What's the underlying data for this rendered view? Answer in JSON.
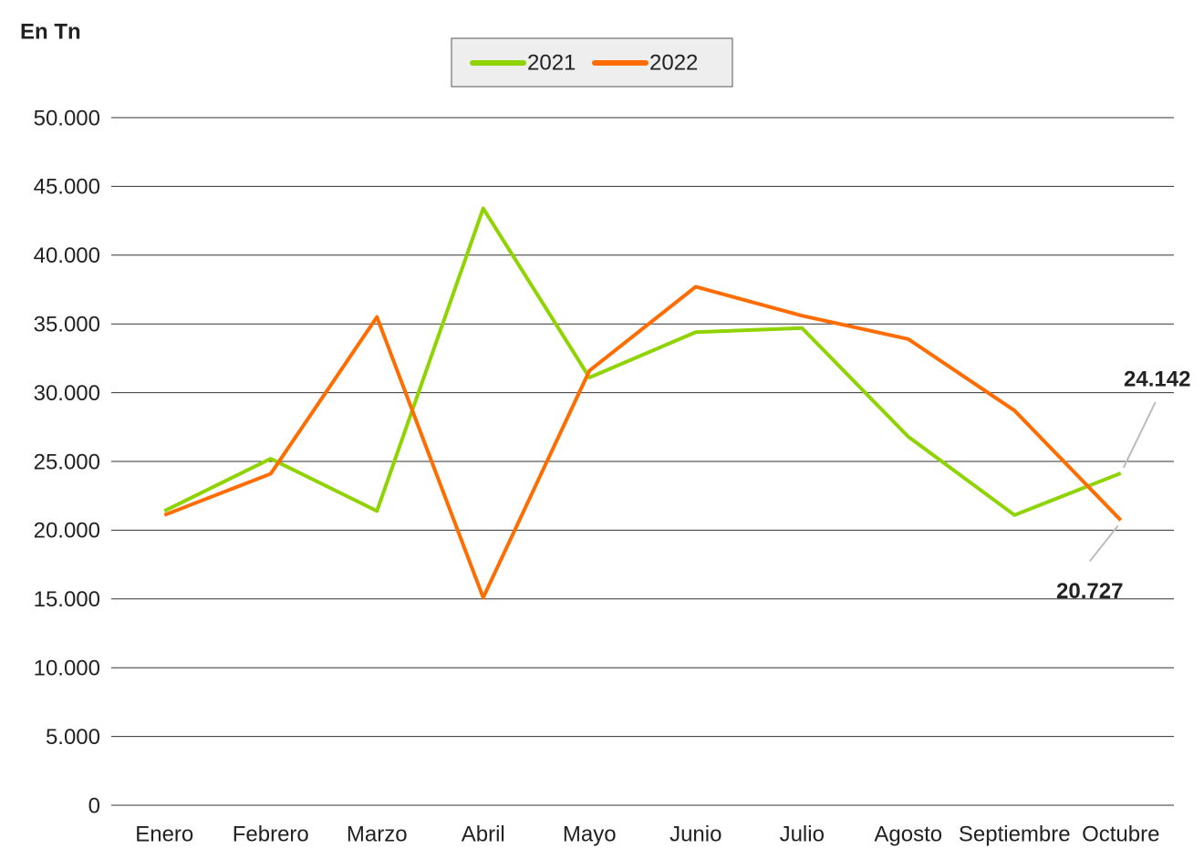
{
  "chart_data": {
    "type": "line",
    "subtitle": "En Tn",
    "categories": [
      "Enero",
      "Febrero",
      "Marzo",
      "Abril",
      "Mayo",
      "Junio",
      "Julio",
      "Agosto",
      "Septiembre",
      "Octubre"
    ],
    "series": [
      {
        "name": "2021",
        "color": "#8fd400",
        "values": [
          21400,
          25200,
          21400,
          43400,
          31100,
          34400,
          34700,
          26800,
          21100,
          24142
        ],
        "value_labels": [
          null,
          null,
          null,
          null,
          null,
          null,
          null,
          null,
          null,
          "24.142"
        ]
      },
      {
        "name": "2022",
        "color": "#ff6d00",
        "values": [
          21100,
          24100,
          35500,
          15100,
          31600,
          37700,
          35600,
          33900,
          28700,
          20727
        ],
        "value_labels": [
          null,
          null,
          null,
          null,
          null,
          null,
          null,
          null,
          null,
          "20.727"
        ]
      }
    ],
    "ylim": [
      0,
      50000
    ],
    "yticks": [
      0,
      {
        "value": 5000,
        "label": "5.000"
      },
      {
        "value": 10000,
        "label": "10.000"
      },
      {
        "value": 15000,
        "label": "15.000"
      },
      {
        "value": 20000,
        "label": "20.000"
      },
      {
        "value": 25000,
        "label": "25.000"
      },
      {
        "value": 30000,
        "label": "30.000"
      },
      {
        "value": 35000,
        "label": "35.000"
      },
      {
        "value": 40000,
        "label": "40.000"
      },
      {
        "value": 45000,
        "label": "45.000"
      },
      {
        "value": 50000,
        "label": "50.000"
      }
    ],
    "grid": true,
    "legend": "top"
  }
}
